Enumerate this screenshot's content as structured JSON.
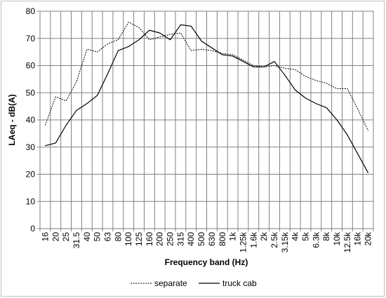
{
  "chart_data": {
    "type": "line",
    "title": "",
    "xlabel": "Frequency band (Hz)",
    "ylabel": "LAeq - dB(A)",
    "ylim": [
      0,
      80
    ],
    "yticks": [
      0,
      10,
      20,
      30,
      40,
      50,
      60,
      70,
      80
    ],
    "grid": true,
    "legend_position": "bottom",
    "categories": [
      "16",
      "20",
      "25",
      "31.5",
      "40",
      "50",
      "63",
      "80",
      "100",
      "125",
      "160",
      "200",
      "250",
      "315",
      "400",
      "500",
      "630",
      "800",
      "1k",
      "1.25k",
      "1.6k",
      "2k",
      "2.5k",
      "3.15k",
      "4k",
      "5k",
      "6.3k",
      "8k",
      "10k",
      "12.5k",
      "16k",
      "20k"
    ],
    "series": [
      {
        "name": "separate",
        "style": "dashed",
        "color": "#000000",
        "values": [
          38.0,
          48.5,
          47.0,
          54.0,
          66.0,
          65.0,
          68.0,
          69.5,
          76.0,
          74.0,
          69.5,
          70.5,
          71.5,
          72.0,
          65.5,
          66.0,
          65.5,
          64.5,
          64.0,
          62.0,
          60.0,
          59.5,
          60.0,
          59.0,
          58.5,
          56.0,
          54.5,
          53.5,
          51.5,
          51.5,
          44.0,
          36.0
        ]
      },
      {
        "name": "truck cab",
        "style": "solid",
        "color": "#000000",
        "values": [
          30.5,
          31.5,
          38.0,
          43.5,
          46.0,
          49.0,
          57.0,
          65.5,
          67.0,
          69.5,
          73.0,
          72.0,
          69.5,
          75.0,
          74.5,
          69.0,
          66.5,
          64.0,
          63.5,
          61.5,
          59.5,
          59.5,
          61.5,
          56.5,
          51.0,
          48.0,
          46.0,
          44.5,
          40.0,
          34.5,
          27.5,
          20.5
        ]
      }
    ]
  }
}
